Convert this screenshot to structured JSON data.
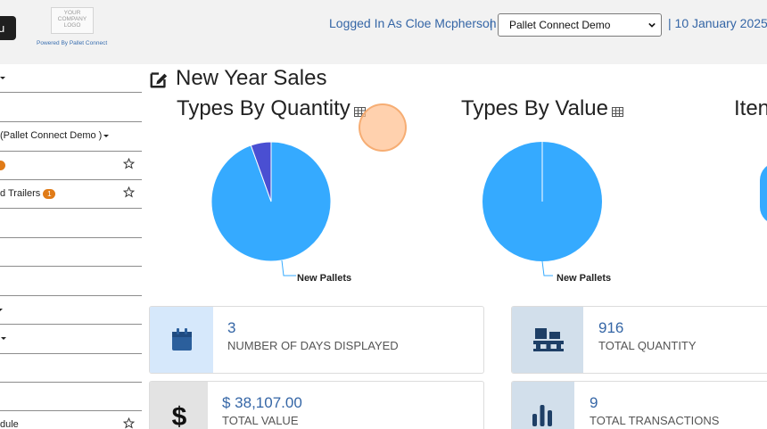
{
  "header": {
    "menu_label": "u",
    "logo_lines": [
      "YOUR",
      "COMPANY",
      "LOGO"
    ],
    "powered_by": "Powered By Pallet Connect",
    "logged_in": "Logged In As Cloe Mcpherson",
    "separator": "|",
    "company_selected": "Pallet Connect Demo",
    "date": "| 10 January 2025"
  },
  "sidebar": {
    "items": [
      {
        "label": "",
        "caret": true
      },
      {
        "label": ""
      },
      {
        "label": "(Pallet Connect Demo )",
        "caret": true
      },
      {
        "label": "",
        "badge": "",
        "star": true
      },
      {
        "label": "d Trailers",
        "badge": "1",
        "star": true
      },
      {
        "label": ""
      },
      {
        "label": ""
      },
      {
        "label": ""
      },
      {
        "label": "",
        "caret": true
      },
      {
        "label": "",
        "caret": true
      },
      {
        "label": ""
      },
      {
        "label": ""
      },
      {
        "label": "dule",
        "star": true
      }
    ]
  },
  "main": {
    "title": "New Year Sales",
    "charts": [
      {
        "title": "Types By Quantity",
        "icon": "table-icon"
      },
      {
        "title": "Types By Value",
        "icon": "table-icon"
      },
      {
        "title": "Iten"
      }
    ],
    "cards": [
      {
        "value": "3",
        "label": "NUMBER OF DAYS DISPLAYED",
        "icon": "calendar-icon"
      },
      {
        "value": "916",
        "label": "TOTAL QUANTITY",
        "icon": "pallets-icon"
      },
      {
        "value": "$ 38,107.00",
        "label": "TOTAL VALUE",
        "icon": "dollar-icon"
      },
      {
        "value": "9",
        "label": "TOTAL TRANSACTIONS",
        "icon": "bar-chart-icon"
      }
    ]
  },
  "colors": {
    "pie_main": "#35aaff",
    "pie_secondary": "#4a4fd2",
    "link": "#3566a6",
    "badge": "#e07b17"
  },
  "chart_data": [
    {
      "type": "pie",
      "title": "Types By Quantity",
      "categories": [
        "New Pallets",
        ""
      ],
      "values": [
        94.5,
        5.5
      ],
      "data_labels": [
        "New Pallets"
      ]
    },
    {
      "type": "pie",
      "title": "Types By Value",
      "categories": [
        "New Pallets",
        ""
      ],
      "values": [
        99.9,
        0.1
      ],
      "data_labels": [
        "New Pallets"
      ]
    }
  ]
}
